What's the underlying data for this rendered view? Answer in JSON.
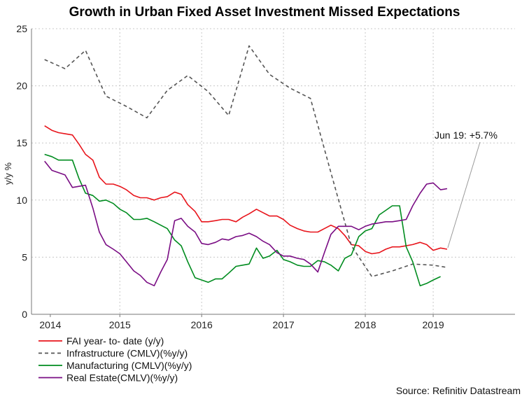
{
  "chart_data": {
    "type": "line",
    "title": "Growth in Urban Fixed Asset Investment Missed Expectations",
    "xlabel": "",
    "ylabel": "y/y %",
    "ylim": [
      0,
      25
    ],
    "yticks": [
      0,
      5,
      10,
      15,
      20,
      25
    ],
    "xlim": [
      2013.92,
      2019.83
    ],
    "year_labels": [
      {
        "label": "2014",
        "x": 2014.15
      },
      {
        "label": "2015",
        "x": 2015.0
      },
      {
        "label": "2016",
        "x": 2016.0
      },
      {
        "label": "2017",
        "x": 2017.0
      },
      {
        "label": "2018",
        "x": 2018.0
      },
      {
        "label": "2019",
        "x": 2018.83
      }
    ],
    "grid_x": [
      2015.0,
      2016.0,
      2017.0,
      2018.0,
      2018.83
    ],
    "series": [
      {
        "name": "FAI year- to- date (y/y)",
        "color": "#e8141b",
        "dash": "",
        "points": [
          [
            2014.08,
            16.5
          ],
          [
            2014.17,
            16.1
          ],
          [
            2014.25,
            15.9
          ],
          [
            2014.33,
            15.8
          ],
          [
            2014.42,
            15.7
          ],
          [
            2014.5,
            14.9
          ],
          [
            2014.58,
            14.0
          ],
          [
            2014.67,
            13.5
          ],
          [
            2014.75,
            12.0
          ],
          [
            2014.83,
            11.4
          ],
          [
            2014.92,
            11.4
          ],
          [
            2015.0,
            11.2
          ],
          [
            2015.08,
            10.9
          ],
          [
            2015.17,
            10.4
          ],
          [
            2015.25,
            10.2
          ],
          [
            2015.33,
            10.2
          ],
          [
            2015.42,
            10.0
          ],
          [
            2015.5,
            10.2
          ],
          [
            2015.58,
            10.3
          ],
          [
            2015.67,
            10.7
          ],
          [
            2015.75,
            10.5
          ],
          [
            2015.83,
            9.6
          ],
          [
            2015.92,
            9.0
          ],
          [
            2016.0,
            8.1
          ],
          [
            2016.08,
            8.1
          ],
          [
            2016.17,
            8.2
          ],
          [
            2016.25,
            8.3
          ],
          [
            2016.33,
            8.3
          ],
          [
            2016.42,
            8.1
          ],
          [
            2016.5,
            8.5
          ],
          [
            2016.58,
            8.8
          ],
          [
            2016.67,
            9.2
          ],
          [
            2016.75,
            8.9
          ],
          [
            2016.83,
            8.6
          ],
          [
            2016.92,
            8.6
          ],
          [
            2017.0,
            8.3
          ],
          [
            2017.08,
            7.8
          ],
          [
            2017.17,
            7.5
          ],
          [
            2017.25,
            7.3
          ],
          [
            2017.33,
            7.2
          ],
          [
            2017.42,
            7.2
          ],
          [
            2017.5,
            7.5
          ],
          [
            2017.58,
            7.8
          ],
          [
            2017.67,
            7.5
          ],
          [
            2017.75,
            6.9
          ],
          [
            2017.83,
            6.1
          ],
          [
            2017.92,
            6.0
          ],
          [
            2018.0,
            5.5
          ],
          [
            2018.08,
            5.3
          ],
          [
            2018.17,
            5.4
          ],
          [
            2018.25,
            5.7
          ],
          [
            2018.33,
            5.9
          ],
          [
            2018.42,
            5.9
          ],
          [
            2018.5,
            6.0
          ],
          [
            2018.58,
            6.1
          ],
          [
            2018.67,
            6.3
          ],
          [
            2018.75,
            6.1
          ],
          [
            2018.83,
            5.6
          ],
          [
            2018.92,
            5.8
          ],
          [
            2019.0,
            5.7
          ]
        ]
      },
      {
        "name": "Infrastructure (CMLV)(%y/y)",
        "color": "#555555",
        "dash": "5,4",
        "points": [
          [
            2014.08,
            22.3
          ],
          [
            2014.33,
            21.5
          ],
          [
            2014.58,
            23.1
          ],
          [
            2014.83,
            19.1
          ],
          [
            2015.08,
            18.2
          ],
          [
            2015.33,
            17.2
          ],
          [
            2015.58,
            19.6
          ],
          [
            2015.83,
            20.9
          ],
          [
            2016.08,
            19.5
          ],
          [
            2016.33,
            17.4
          ],
          [
            2016.58,
            23.5
          ],
          [
            2016.83,
            21.0
          ],
          [
            2017.08,
            19.8
          ],
          [
            2017.33,
            18.9
          ],
          [
            2017.58,
            12.4
          ],
          [
            2017.83,
            6.0
          ],
          [
            2018.08,
            3.3
          ],
          [
            2018.33,
            3.8
          ],
          [
            2018.58,
            4.4
          ],
          [
            2018.83,
            4.3
          ],
          [
            2019.0,
            4.1
          ]
        ]
      },
      {
        "name": "Manufacturing (CMLV)(%y/y)",
        "color": "#008c1f",
        "dash": "",
        "points": [
          [
            2014.08,
            14.0
          ],
          [
            2014.17,
            13.8
          ],
          [
            2014.25,
            13.5
          ],
          [
            2014.33,
            13.5
          ],
          [
            2014.42,
            13.5
          ],
          [
            2014.5,
            11.9
          ],
          [
            2014.58,
            10.6
          ],
          [
            2014.67,
            10.4
          ],
          [
            2014.75,
            9.9
          ],
          [
            2014.83,
            10.0
          ],
          [
            2014.92,
            9.7
          ],
          [
            2015.0,
            9.2
          ],
          [
            2015.08,
            8.9
          ],
          [
            2015.17,
            8.3
          ],
          [
            2015.25,
            8.3
          ],
          [
            2015.33,
            8.4
          ],
          [
            2015.42,
            8.1
          ],
          [
            2015.5,
            7.8
          ],
          [
            2015.58,
            7.5
          ],
          [
            2015.67,
            6.5
          ],
          [
            2015.75,
            6.0
          ],
          [
            2015.83,
            4.6
          ],
          [
            2015.92,
            3.2
          ],
          [
            2016.0,
            3.0
          ],
          [
            2016.08,
            2.8
          ],
          [
            2016.17,
            3.1
          ],
          [
            2016.25,
            3.1
          ],
          [
            2016.33,
            3.6
          ],
          [
            2016.42,
            4.2
          ],
          [
            2016.5,
            4.3
          ],
          [
            2016.58,
            4.4
          ],
          [
            2016.67,
            5.8
          ],
          [
            2016.75,
            4.9
          ],
          [
            2016.83,
            5.1
          ],
          [
            2016.92,
            5.6
          ],
          [
            2017.0,
            4.8
          ],
          [
            2017.08,
            4.6
          ],
          [
            2017.17,
            4.3
          ],
          [
            2017.25,
            4.2
          ],
          [
            2017.33,
            4.2
          ],
          [
            2017.42,
            4.7
          ],
          [
            2017.5,
            4.6
          ],
          [
            2017.58,
            4.3
          ],
          [
            2017.67,
            3.8
          ],
          [
            2017.75,
            4.9
          ],
          [
            2017.83,
            5.2
          ],
          [
            2017.92,
            6.8
          ],
          [
            2018.0,
            7.3
          ],
          [
            2018.08,
            7.5
          ],
          [
            2018.17,
            8.7
          ],
          [
            2018.25,
            9.1
          ],
          [
            2018.33,
            9.5
          ],
          [
            2018.42,
            9.5
          ],
          [
            2018.5,
            5.9
          ],
          [
            2018.58,
            4.6
          ],
          [
            2018.67,
            2.5
          ],
          [
            2018.75,
            2.7
          ],
          [
            2018.83,
            3.0
          ],
          [
            2018.92,
            3.3
          ]
        ]
      },
      {
        "name": "Real Estate(CMLV)(%y/y)",
        "color": "#7a0d84",
        "dash": "",
        "points": [
          [
            2014.08,
            13.4
          ],
          [
            2014.17,
            12.6
          ],
          [
            2014.25,
            12.4
          ],
          [
            2014.33,
            12.2
          ],
          [
            2014.42,
            11.1
          ],
          [
            2014.5,
            11.2
          ],
          [
            2014.58,
            11.3
          ],
          [
            2014.67,
            9.3
          ],
          [
            2014.75,
            7.2
          ],
          [
            2014.83,
            6.1
          ],
          [
            2014.92,
            5.7
          ],
          [
            2015.0,
            5.3
          ],
          [
            2015.08,
            4.6
          ],
          [
            2015.17,
            3.8
          ],
          [
            2015.25,
            3.4
          ],
          [
            2015.33,
            2.8
          ],
          [
            2015.42,
            2.5
          ],
          [
            2015.5,
            3.7
          ],
          [
            2015.58,
            4.8
          ],
          [
            2015.67,
            8.2
          ],
          [
            2015.75,
            8.4
          ],
          [
            2015.83,
            7.7
          ],
          [
            2015.92,
            7.2
          ],
          [
            2016.0,
            6.2
          ],
          [
            2016.08,
            6.1
          ],
          [
            2016.17,
            6.3
          ],
          [
            2016.25,
            6.6
          ],
          [
            2016.33,
            6.5
          ],
          [
            2016.42,
            6.8
          ],
          [
            2016.5,
            6.9
          ],
          [
            2016.58,
            7.1
          ],
          [
            2016.67,
            6.8
          ],
          [
            2016.75,
            6.4
          ],
          [
            2016.83,
            6.1
          ],
          [
            2016.92,
            5.4
          ],
          [
            2017.0,
            5.1
          ],
          [
            2017.08,
            5.1
          ],
          [
            2017.17,
            4.9
          ],
          [
            2017.25,
            4.8
          ],
          [
            2017.33,
            4.4
          ],
          [
            2017.42,
            3.7
          ],
          [
            2017.5,
            5.4
          ],
          [
            2017.58,
            7.0
          ],
          [
            2017.67,
            7.7
          ],
          [
            2017.75,
            7.7
          ],
          [
            2017.83,
            7.7
          ],
          [
            2017.92,
            7.4
          ],
          [
            2018.0,
            7.7
          ],
          [
            2018.08,
            7.9
          ],
          [
            2018.17,
            8.0
          ],
          [
            2018.25,
            8.1
          ],
          [
            2018.33,
            8.1
          ],
          [
            2018.42,
            8.2
          ],
          [
            2018.5,
            8.3
          ],
          [
            2018.58,
            9.5
          ],
          [
            2018.67,
            10.6
          ],
          [
            2018.75,
            11.4
          ],
          [
            2018.83,
            11.5
          ],
          [
            2018.92,
            10.9
          ],
          [
            2019.0,
            11.0
          ]
        ]
      }
    ],
    "annotations": [
      {
        "text": "Jun 19: +5.7%",
        "target": [
          2019.0,
          5.7
        ]
      }
    ],
    "source": "Source: Refinitiv Datastream"
  }
}
